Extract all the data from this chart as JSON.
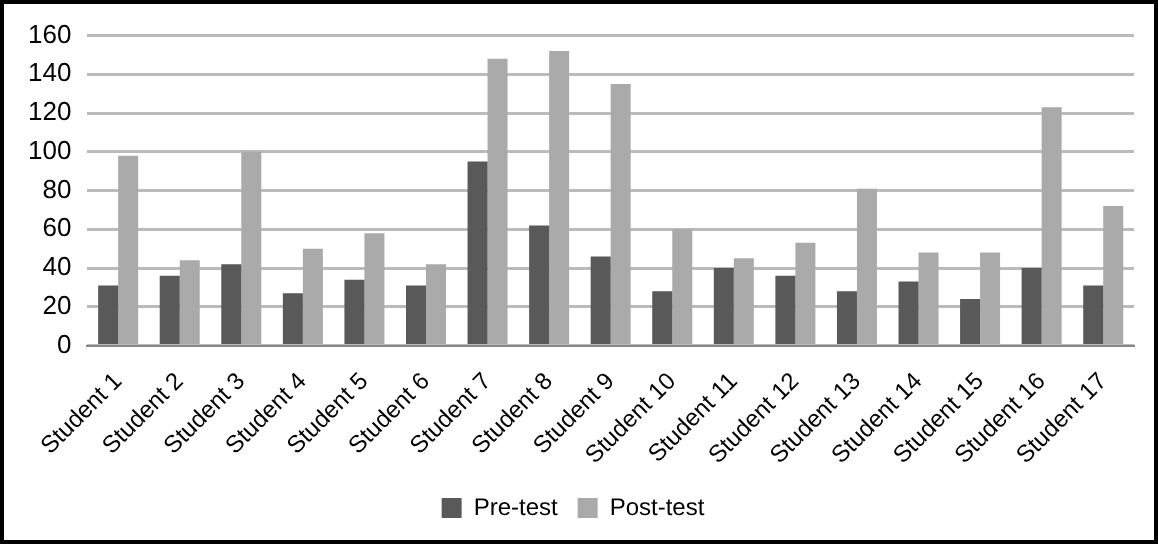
{
  "chart_data": {
    "type": "bar",
    "categories": [
      "Student 1",
      "Student 2",
      "Student 3",
      "Student 4",
      "Student 5",
      "Student 6",
      "Student 7",
      "Student 8",
      "Student 9",
      "Student 10",
      "Student 11",
      "Student 12",
      "Student 13",
      "Student 14",
      "Student 15",
      "Student 16",
      "Student 17"
    ],
    "series": [
      {
        "name": "Pre-test",
        "color": "#595959",
        "values": [
          31,
          36,
          42,
          27,
          34,
          31,
          95,
          62,
          46,
          28,
          40,
          36,
          28,
          33,
          24,
          40,
          31
        ]
      },
      {
        "name": "Post-test",
        "color": "#aaaaaa",
        "values": [
          98,
          44,
          100,
          50,
          58,
          42,
          148,
          152,
          135,
          60,
          45,
          53,
          81,
          48,
          48,
          123,
          72
        ]
      }
    ],
    "ylim": [
      0,
      160
    ],
    "yticks": [
      0,
      20,
      40,
      60,
      80,
      100,
      120,
      140,
      160
    ],
    "grid": "y",
    "legend": "bottom"
  }
}
